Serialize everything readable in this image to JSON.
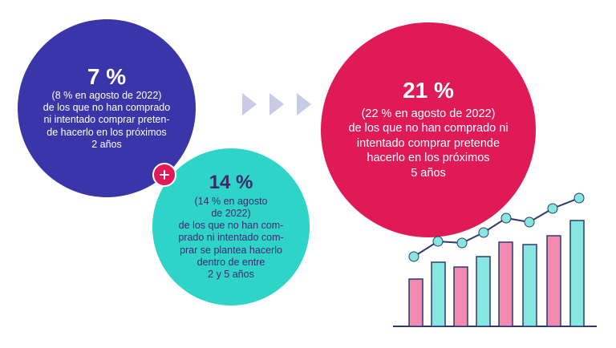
{
  "blue": {
    "percent": "7 %",
    "detail": "(8 % en agosto de 2022)\nde los que no han comprado\nni intentado comprar preten-\nde hacerlo en los próximos\n2 años"
  },
  "cyan": {
    "percent": "14 %",
    "detail": "(14 % en agosto\nde 2022)\nde los que no han com-\nprado ni intentado com-\nprar se plantea hacerlo\ndentro de entre\n2 y 5 años"
  },
  "pink": {
    "percent": "21 %",
    "detail": "(22 % en agosto de 2022)\nde los que no han comprado ni\nintentado comprar pretende\nhacerlo en los próximos\n5 años"
  },
  "icons": {
    "plus": "plus-icon",
    "arrows": "chevron-right-icon",
    "chart": "growth-bar-chart-icon"
  },
  "colors": {
    "blue": "#3a35a8",
    "cyan": "#2fd4c8",
    "pink": "#e01a57",
    "light_pink": "#f38aae",
    "light_cyan": "#86e6e0",
    "arrow": "#c8cbe6"
  }
}
